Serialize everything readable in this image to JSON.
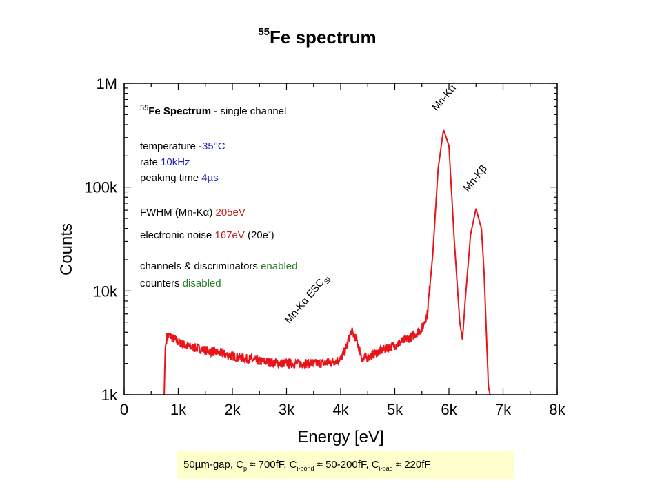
{
  "title": {
    "sup": "55",
    "text": "Fe spectrum"
  },
  "chart_data": {
    "type": "line",
    "title": "55Fe spectrum",
    "xlabel": "Energy [eV]",
    "ylabel": "Counts",
    "xlim": [
      0,
      8000
    ],
    "ylim": [
      1000,
      1000000
    ],
    "yscale": "log",
    "x_ticks": [
      0,
      1000,
      2000,
      3000,
      4000,
      5000,
      6000,
      7000,
      8000
    ],
    "x_tick_labels": [
      "0",
      "1k",
      "2k",
      "3k",
      "4k",
      "5k",
      "6k",
      "7k",
      "8k"
    ],
    "y_ticks": [
      1000,
      10000,
      100000,
      1000000
    ],
    "y_tick_labels": [
      "1k",
      "10k",
      "100k",
      "1M"
    ],
    "grid": false,
    "series_color": "#e8141a",
    "series": [
      {
        "x": [
          740,
          760,
          790,
          850,
          900,
          1000,
          1200,
          1500,
          1800,
          2100,
          2400,
          2700,
          3000,
          3300,
          3600,
          3800,
          4000,
          4100,
          4200,
          4300,
          4400,
          4500,
          4700,
          5000,
          5300,
          5500,
          5600,
          5700,
          5800,
          5900,
          6000,
          6100,
          6200,
          6250,
          6300,
          6400,
          6500,
          6600,
          6650,
          6700,
          6730,
          6760
        ],
        "y": [
          1000,
          2800,
          3600,
          3700,
          3500,
          3200,
          2900,
          2700,
          2500,
          2300,
          2150,
          2050,
          2000,
          2000,
          2000,
          2050,
          2200,
          2800,
          4100,
          3300,
          2200,
          2300,
          2600,
          3000,
          3600,
          4300,
          6000,
          22000,
          150000,
          360000,
          250000,
          30000,
          5000,
          3400,
          8000,
          35000,
          62000,
          40000,
          15000,
          3000,
          1200,
          1000
        ]
      }
    ],
    "peak_labels": [
      {
        "text": "Mn-Kα",
        "x": 5900,
        "y": 360000
      },
      {
        "text": "Mn-Kβ",
        "x": 6500,
        "y": 62000
      },
      {
        "text": "Mn-Kα ESC",
        "sub": "Si",
        "x": 4200,
        "y": 4100
      }
    ]
  },
  "legend": {
    "heading_sup": "55",
    "heading_fe": "Fe Spectrum",
    "heading_rest": " - single channel",
    "temp_label": "temperature ",
    "temp_value": "-35°C",
    "rate_label": "rate ",
    "rate_value": "10kHz",
    "peak_label": "peaking time ",
    "peak_value": "4µs",
    "fwhm_label": "FWHM (Mn-Kα) ",
    "fwhm_value": "205eV",
    "noise_label": "electronic noise ",
    "noise_value": "167eV",
    "noise_extra": " (20e",
    "noise_sup": "-",
    "noise_close": ")",
    "chan_label": "channels & discriminators ",
    "chan_value": "enabled",
    "count_label": "counters ",
    "count_value": "disabled",
    "colors": {
      "blue": "#2020c0",
      "red": "#c02020",
      "green": "#208020"
    }
  },
  "caption": {
    "p1": "50µm-gap, C",
    "s1": "p",
    "p2": " ≈ 700fF, C",
    "s2": "i-bond",
    "p3": " ≈ 50-200fF, C",
    "s3": "i-pad",
    "p4": " ≈ 220fF",
    "background": "#ffffcc"
  }
}
